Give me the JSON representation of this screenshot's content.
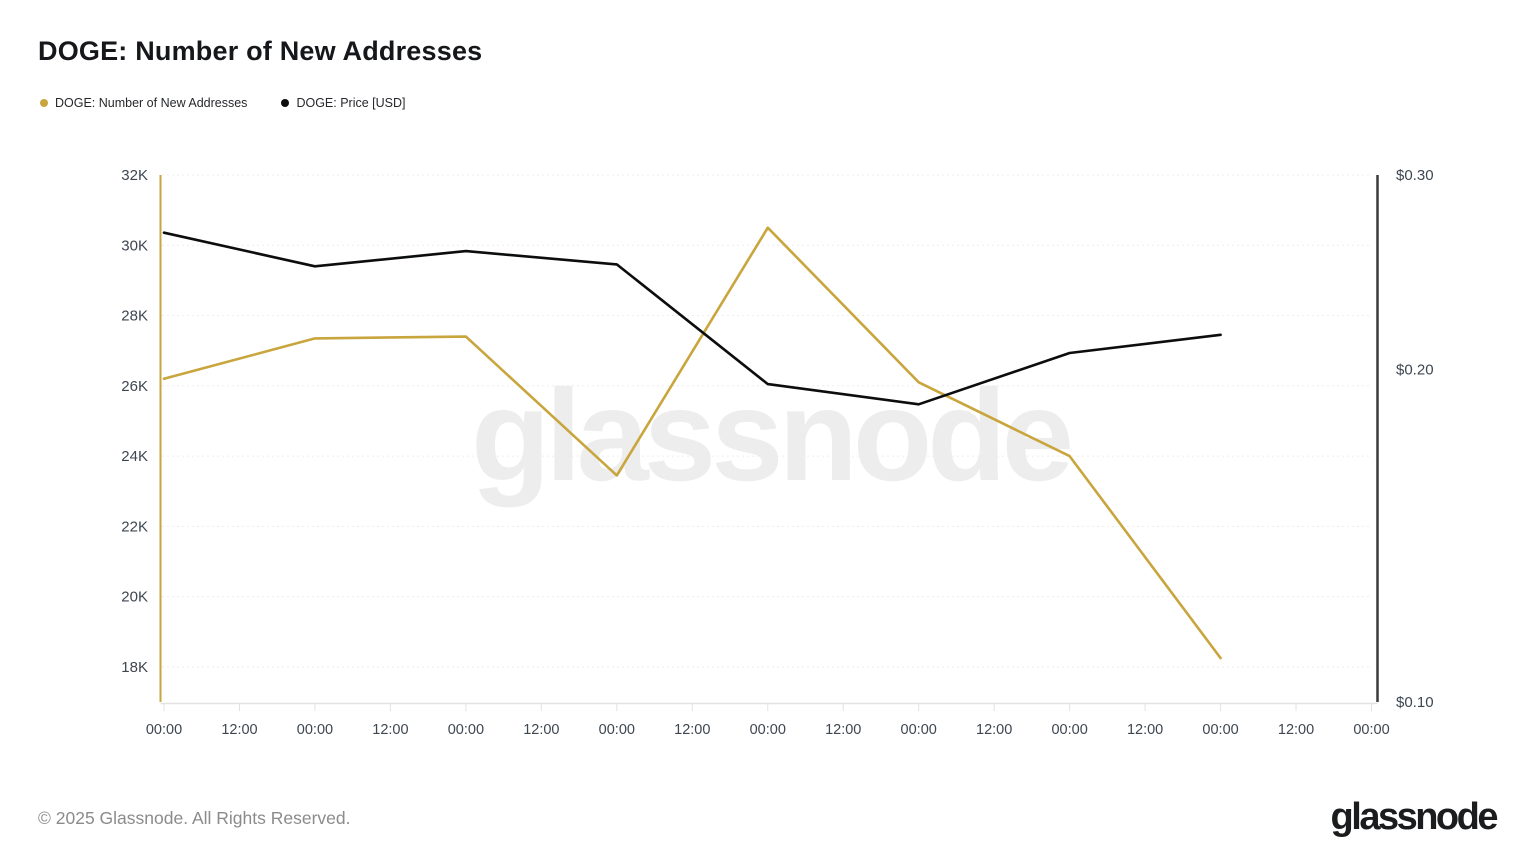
{
  "header": {
    "title": "DOGE: Number of New Addresses"
  },
  "legend": {
    "items": [
      {
        "label": "DOGE: Number of New Addresses",
        "color": "#C9A53E"
      },
      {
        "label": "DOGE: Price [USD]",
        "color": "#0C0D0E"
      }
    ]
  },
  "chart_data": {
    "type": "line",
    "title": "DOGE: Number of New Addresses",
    "xlabel": "",
    "ylabel_left": "DOGE: Number of New Addresses",
    "ylabel_right": "DOGE: Price [USD]",
    "legend_position": "top-left",
    "x_tick_labels": [
      "00:00",
      "12:00",
      "00:00",
      "12:00",
      "00:00",
      "12:00",
      "00:00",
      "12:00",
      "00:00",
      "12:00",
      "00:00",
      "12:00",
      "00:00",
      "12:00",
      "00:00",
      "12:00",
      "00:00"
    ],
    "points_every_n_ticks": 2,
    "axis_label_color": "#3E4651",
    "left_axis": {
      "scale": "linear",
      "domain": [
        17000,
        32000
      ],
      "axis_color": "#C9A53E",
      "ticks": [
        {
          "label": "32K",
          "value": 32000
        },
        {
          "label": "30K",
          "value": 30000
        },
        {
          "label": "28K",
          "value": 28000
        },
        {
          "label": "26K",
          "value": 26000
        },
        {
          "label": "24K",
          "value": 24000
        },
        {
          "label": "22K",
          "value": 22000
        },
        {
          "label": "20K",
          "value": 20000
        },
        {
          "label": "18K",
          "value": 18000
        }
      ]
    },
    "right_axis": {
      "scale": "log",
      "domain": [
        0.1,
        0.3
      ],
      "axis_color": "#3A3B3C",
      "ticks": [
        {
          "label": "$0.30",
          "value": 0.3
        },
        {
          "label": "$0.20",
          "value": 0.2
        },
        {
          "label": "$0.10",
          "value": 0.1
        }
      ]
    },
    "series": [
      {
        "name": "DOGE: Number of New Addresses",
        "axis": "left",
        "color": "#C9A53E",
        "values": [
          26200,
          27350,
          27400,
          23450,
          30500,
          26100,
          24000,
          18250
        ]
      },
      {
        "name": "DOGE: Price [USD]",
        "axis": "right",
        "color": "#0C0D0E",
        "values": [
          0.266,
          0.248,
          0.256,
          0.249,
          0.194,
          0.186,
          0.207,
          0.215
        ]
      }
    ],
    "grid": {
      "horizontal": true,
      "vertical": false,
      "style": "dotted",
      "color": "#EDEDED"
    }
  },
  "watermark": {
    "text": "glassnode",
    "color": "#EDEDED"
  },
  "footer": {
    "copyright": "© 2025 Glassnode. All Rights Reserved.",
    "logo_text": "glassnode"
  }
}
